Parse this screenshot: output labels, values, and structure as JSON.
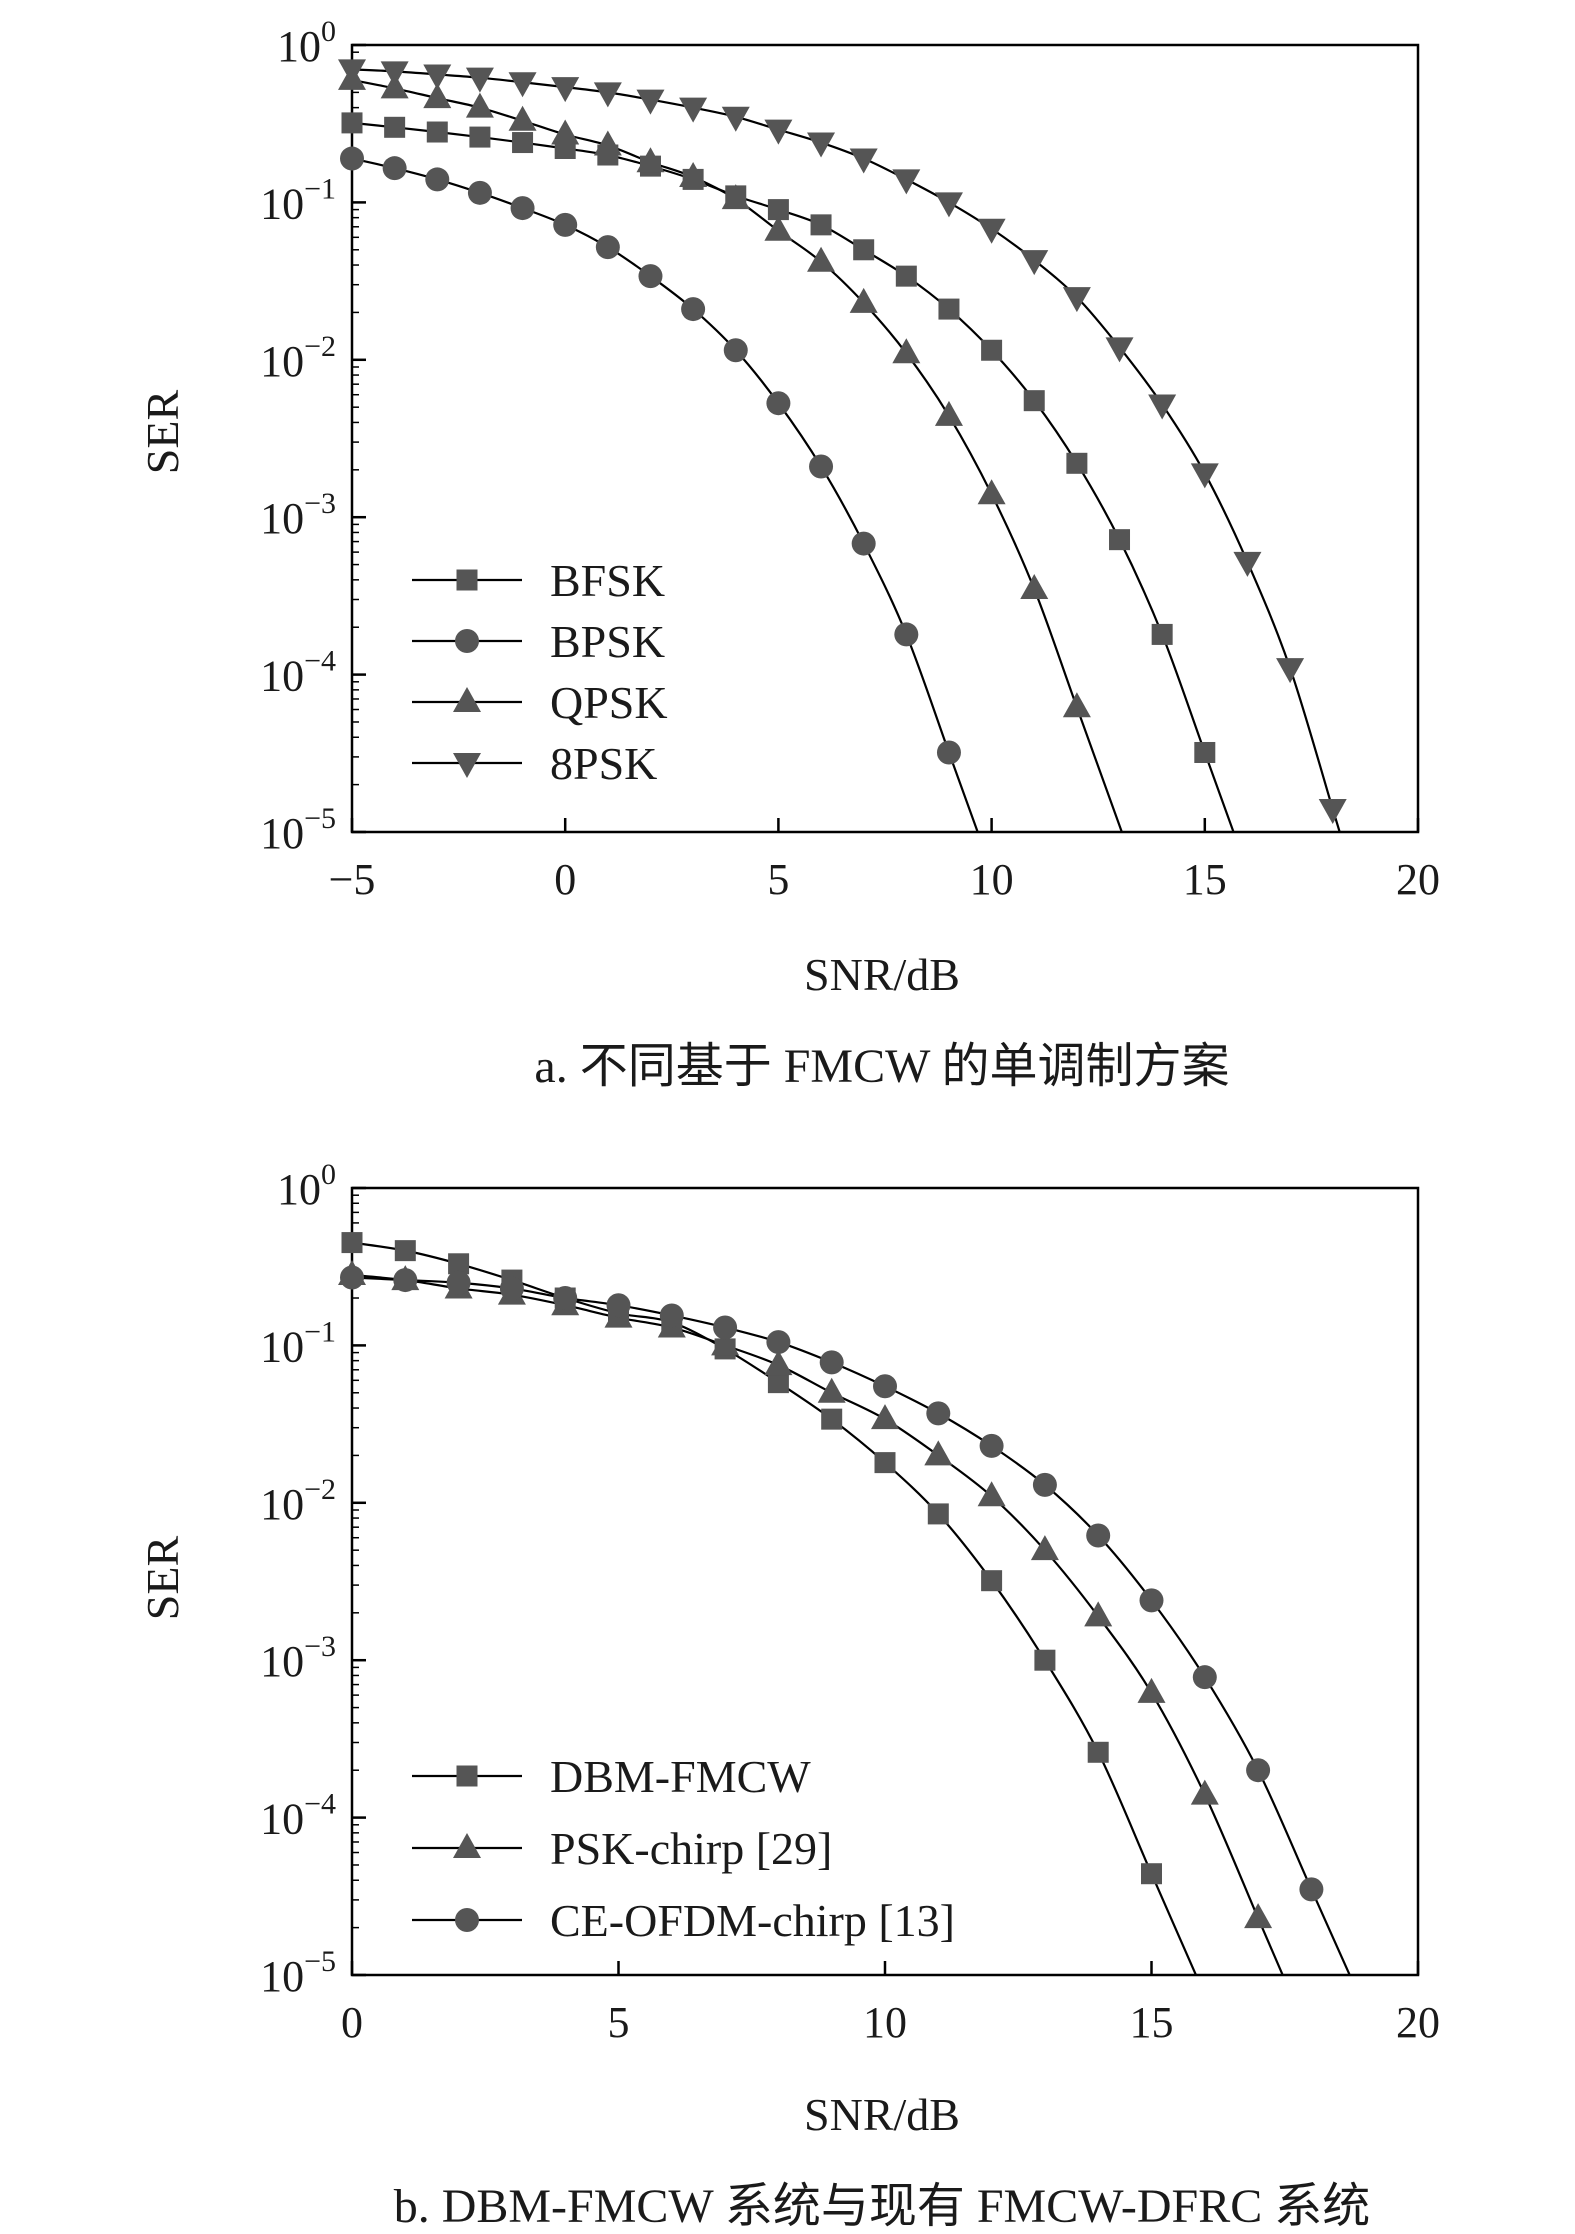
{
  "colors": {
    "axis": "#000000",
    "series": "#555555",
    "text": "#1a1a1a"
  },
  "chart_data": [
    {
      "type": "line",
      "scale": "log-y",
      "caption": "a. 不同基于 FMCW 的单调制方案",
      "xlabel": "SNR/dB",
      "ylabel": "SER",
      "xlim": [
        -5,
        20
      ],
      "ylim_exp": [
        -5,
        0
      ],
      "xticks": [
        -5,
        0,
        5,
        10,
        15,
        20
      ],
      "xtick_labels": [
        "−5",
        "0",
        "5",
        "10",
        "15",
        "20"
      ],
      "yticks_exp": [
        0,
        -1,
        -2,
        -3,
        -4,
        -5
      ],
      "ytick_base": "10",
      "ytick_exponents": [
        "0",
        "−1",
        "−2",
        "−3",
        "−4",
        "−5"
      ],
      "legend_position": "lower-left",
      "series": [
        {
          "name": "BFSK",
          "marker": "square",
          "x": [
            -5,
            -4,
            -3,
            -2,
            -1,
            0,
            1,
            2,
            3,
            4,
            5,
            6,
            7,
            8,
            9,
            10,
            11,
            12,
            13,
            14,
            15
          ],
          "y": [
            0.32,
            0.3,
            0.28,
            0.26,
            0.24,
            0.22,
            0.2,
            0.17,
            0.14,
            0.11,
            0.09,
            0.072,
            0.05,
            0.034,
            0.021,
            0.0115,
            0.0055,
            0.0022,
            0.00072,
            0.00018,
            3.2e-05
          ]
        },
        {
          "name": "BPSK",
          "marker": "circle",
          "x": [
            -5,
            -4,
            -3,
            -2,
            -1,
            0,
            1,
            2,
            3,
            4,
            5,
            6,
            7,
            8,
            9
          ],
          "y": [
            0.19,
            0.165,
            0.14,
            0.115,
            0.092,
            0.072,
            0.052,
            0.034,
            0.021,
            0.0115,
            0.0053,
            0.0021,
            0.00068,
            0.00018,
            3.2e-05
          ]
        },
        {
          "name": "QPSK",
          "marker": "triangle-up",
          "x": [
            -5,
            -4,
            -3,
            -2,
            -1,
            0,
            1,
            2,
            3,
            4,
            5,
            6,
            7,
            8,
            9,
            10,
            11,
            12
          ],
          "y": [
            0.6,
            0.53,
            0.46,
            0.4,
            0.33,
            0.27,
            0.23,
            0.18,
            0.145,
            0.105,
            0.066,
            0.042,
            0.023,
            0.011,
            0.0044,
            0.0014,
            0.00035,
            6.2e-05
          ]
        },
        {
          "name": "8PSK",
          "marker": "triangle-down",
          "x": [
            -5,
            -4,
            -3,
            -2,
            -1,
            0,
            1,
            2,
            3,
            4,
            5,
            6,
            7,
            8,
            9,
            10,
            11,
            12,
            13,
            14,
            15,
            16,
            17,
            18
          ],
          "y": [
            0.7,
            0.68,
            0.65,
            0.62,
            0.58,
            0.54,
            0.5,
            0.45,
            0.4,
            0.35,
            0.29,
            0.24,
            0.19,
            0.14,
            0.1,
            0.068,
            0.043,
            0.025,
            0.012,
            0.0052,
            0.0019,
            0.00052,
            0.00011,
            1.4e-05
          ]
        }
      ]
    },
    {
      "type": "line",
      "scale": "log-y",
      "caption": "b. DBM-FMCW 系统与现有 FMCW-DFRC 系统",
      "xlabel": "SNR/dB",
      "ylabel": "SER",
      "xlim": [
        0,
        20
      ],
      "ylim_exp": [
        -5,
        0
      ],
      "xticks": [
        0,
        5,
        10,
        15,
        20
      ],
      "xtick_labels": [
        "0",
        "5",
        "10",
        "15",
        "20"
      ],
      "yticks_exp": [
        0,
        -1,
        -2,
        -3,
        -4,
        -5
      ],
      "ytick_base": "10",
      "ytick_exponents": [
        "0",
        "−1",
        "−2",
        "−3",
        "−4",
        "−5"
      ],
      "legend_position": "lower-left",
      "series": [
        {
          "name": "DBM-FMCW",
          "marker": "square",
          "x": [
            0,
            1,
            2,
            3,
            4,
            5,
            6,
            7,
            8,
            9,
            10,
            11,
            12,
            13,
            14,
            15
          ],
          "y": [
            0.45,
            0.4,
            0.33,
            0.26,
            0.2,
            0.16,
            0.14,
            0.095,
            0.058,
            0.034,
            0.018,
            0.0085,
            0.0032,
            0.001,
            0.00026,
            4.4e-05
          ]
        },
        {
          "name": "PSK-chirp [29]",
          "marker": "triangle-up",
          "x": [
            0,
            1,
            2,
            3,
            4,
            5,
            6,
            7,
            8,
            9,
            10,
            11,
            12,
            13,
            14,
            15,
            16,
            17
          ],
          "y": [
            0.28,
            0.26,
            0.23,
            0.21,
            0.18,
            0.15,
            0.13,
            0.1,
            0.075,
            0.05,
            0.034,
            0.02,
            0.011,
            0.005,
            0.0019,
            0.00062,
            0.00014,
            2.3e-05
          ]
        },
        {
          "name": "CE-OFDM-chirp [13]",
          "marker": "circle",
          "x": [
            0,
            1,
            2,
            3,
            4,
            5,
            6,
            7,
            8,
            9,
            10,
            11,
            12,
            13,
            14,
            15,
            16,
            17,
            18
          ],
          "y": [
            0.27,
            0.26,
            0.25,
            0.23,
            0.2,
            0.18,
            0.155,
            0.13,
            0.105,
            0.078,
            0.055,
            0.037,
            0.023,
            0.013,
            0.0062,
            0.0024,
            0.00078,
            0.0002,
            3.5e-05
          ]
        }
      ]
    }
  ]
}
